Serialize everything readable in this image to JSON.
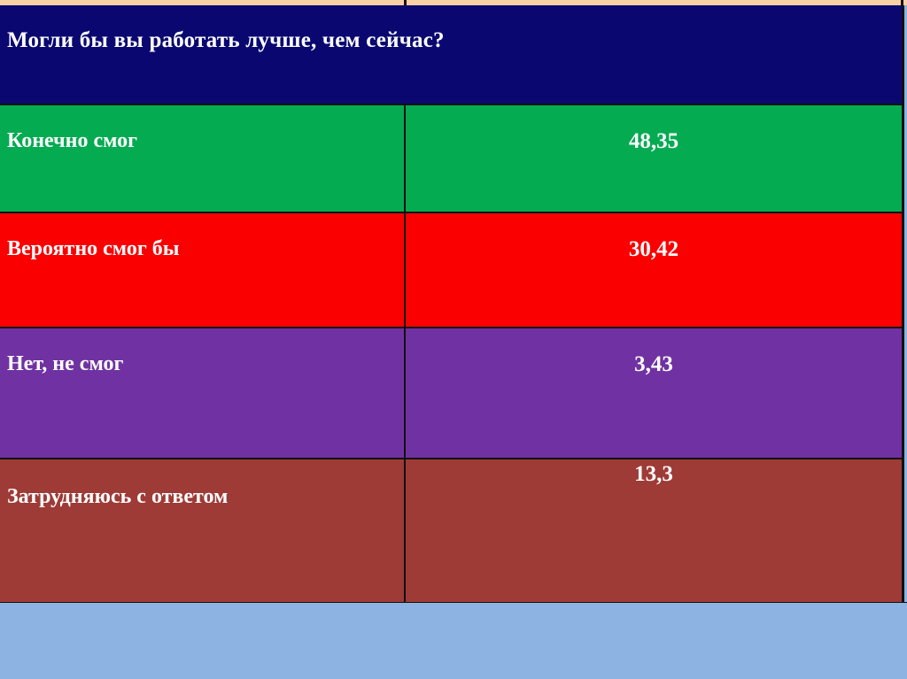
{
  "table": {
    "question": "Могли бы вы работать лучше, чем сейчас?",
    "rows": [
      {
        "label": "Конечно смог",
        "value": "48,35",
        "color": "#04AB51"
      },
      {
        "label": "Вероятно смог бы",
        "value": "30,42",
        "color": "#FB0000"
      },
      {
        "label": "Нет, не смог",
        "value": "3,43",
        "color": "#7032A2"
      },
      {
        "label": "Затрудняюсь с ответом",
        "value": "13,3",
        "color": "#9E3B37"
      }
    ]
  },
  "colors": {
    "header_bg": "#0A0870",
    "top_strip": "#FBD2A4",
    "footer_bg": "#8DB3E2",
    "border": "#101010",
    "text": "#FFFFFF"
  },
  "chart_data": {
    "type": "table",
    "title": "Могли бы вы работать лучше, чем сейчас?",
    "categories": [
      "Конечно смог",
      "Вероятно смог бы",
      "Нет, не смог",
      "Затрудняюсь с ответом"
    ],
    "values": [
      48.35,
      30.42,
      3.43,
      13.3
    ],
    "value_labels": [
      "48,35",
      "30,42",
      "3,43",
      "13,3"
    ],
    "value_note": "percent of respondents, comma as decimal separator",
    "row_colors": [
      "#04AB51",
      "#FB0000",
      "#7032A2",
      "#9E3B37"
    ],
    "legend_position": "none",
    "grid": false
  }
}
